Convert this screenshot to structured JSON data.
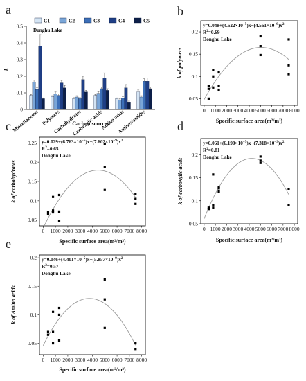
{
  "chart_data": [
    {
      "panel": "a",
      "type": "bar",
      "subtitle": "Donghu Lake",
      "xlabel": "Carbon sources",
      "ylabel": "k",
      "ylim": [
        0,
        0.5
      ],
      "yticks": [
        "0",
        "0.1",
        "0.2",
        "0.3",
        "0.4",
        "0.5"
      ],
      "categories": [
        "Miscellaneous",
        "Polymers",
        "Carbohydrates",
        "Carboxylic acids",
        "Amino acids",
        "Amines/amides"
      ],
      "series": [
        {
          "name": "C1",
          "color": "#d4e4f4",
          "values": [
            0.085,
            0.078,
            0.065,
            0.085,
            0.065,
            0.105
          ],
          "errors": [
            0.005,
            0.005,
            0.006,
            0.006,
            0.005,
            0.012
          ]
        },
        {
          "name": "C2",
          "color": "#7aa6d8",
          "values": [
            0.165,
            0.095,
            0.075,
            0.097,
            0.058,
            0.075
          ],
          "errors": [
            0.012,
            0.01,
            0.008,
            0.01,
            0.006,
            0.008
          ]
        },
        {
          "name": "C3",
          "color": "#3c6fb8",
          "values": [
            0.12,
            0.085,
            0.065,
            0.125,
            0.07,
            0.17
          ],
          "errors": [
            0.01,
            0.008,
            0.006,
            0.01,
            0.008,
            0.015
          ]
        },
        {
          "name": "C4",
          "color": "#1f3f86",
          "values": [
            0.38,
            0.16,
            0.18,
            0.19,
            0.13,
            0.17
          ],
          "errors": [
            0.07,
            0.015,
            0.02,
            0.03,
            0.02,
            0.02
          ]
        },
        {
          "name": "C5",
          "color": "#0d1f48",
          "values": [
            0.065,
            0.13,
            0.105,
            0.115,
            0.045,
            0.125
          ],
          "errors": [
            0.005,
            0.015,
            0.01,
            0.01,
            0.005,
            0.01
          ]
        }
      ]
    },
    {
      "panel": "b",
      "type": "scatter",
      "equation": [
        "y=0.048+(4.622×10",
        "−5",
        ")x−(4.561×10",
        "−9",
        ")x",
        "2"
      ],
      "r2": [
        "R",
        "2",
        "=0.69"
      ],
      "site": "Donghu Lake",
      "xlabel": "Specific surface area(m²/m³)",
      "ylabel": "k of polymers",
      "xlim": [
        -300,
        8300
      ],
      "ylim": [
        0.035,
        0.225
      ],
      "xticks": [
        0,
        1000,
        2000,
        3000,
        4000,
        5000,
        6000,
        7000,
        8000
      ],
      "yticks": [
        0.05,
        0.1,
        0.15,
        0.2
      ],
      "points": [
        [
          400,
          0.05
        ],
        [
          400,
          0.072
        ],
        [
          400,
          0.079
        ],
        [
          800,
          0.075
        ],
        [
          800,
          0.1
        ],
        [
          800,
          0.115
        ],
        [
          1300,
          0.07
        ],
        [
          1300,
          0.078
        ],
        [
          1300,
          0.109
        ],
        [
          5000,
          0.148
        ],
        [
          5000,
          0.168
        ],
        [
          5000,
          0.19
        ],
        [
          7500,
          0.105
        ],
        [
          7500,
          0.125
        ],
        [
          7500,
          0.183
        ]
      ],
      "fit": [
        0.048,
        4.622e-05,
        -4.561e-09
      ]
    },
    {
      "panel": "c",
      "type": "scatter",
      "equation": [
        "y=0.029+(6.763×10",
        "−5",
        ")x−(7.602×10",
        "−9",
        ")x",
        "2"
      ],
      "r2": [
        "R",
        "2",
        "=0.65"
      ],
      "site": "Donghu Lake",
      "xlabel": "Specific surface area(m²/m³)",
      "ylabel": "k of carbohydrates",
      "xlim": [
        -300,
        8300
      ],
      "ylim": [
        0.035,
        0.265
      ],
      "xticks": [
        0,
        1000,
        2000,
        3000,
        4000,
        5000,
        6000,
        7000,
        8000
      ],
      "yticks": [
        0.05,
        0.1,
        0.15,
        0.2,
        0.25
      ],
      "points": [
        [
          400,
          0.065
        ],
        [
          400,
          0.07
        ],
        [
          800,
          0.07
        ],
        [
          800,
          0.075
        ],
        [
          800,
          0.11
        ],
        [
          1300,
          0.048
        ],
        [
          1300,
          0.072
        ],
        [
          1300,
          0.115
        ],
        [
          5000,
          0.128
        ],
        [
          5000,
          0.188
        ],
        [
          5000,
          0.247
        ],
        [
          7500,
          0.092
        ],
        [
          7500,
          0.105
        ],
        [
          7500,
          0.118
        ]
      ],
      "fit": [
        0.029,
        6.763e-05,
        -7.602e-09
      ]
    },
    {
      "panel": "d",
      "type": "scatter",
      "equation": [
        "y=0.061+(6.190×10",
        "−5",
        ")x−(7.318×10",
        "−9",
        ")x",
        "2"
      ],
      "r2": [
        "R",
        "2",
        "=0.81"
      ],
      "site": "Donghu Lake",
      "xlabel": "Specific surface area(m²/m³)",
      "ylabel": "k of carboxylic acids",
      "xlim": [
        -300,
        8300
      ],
      "ylim": [
        0.05,
        0.235
      ],
      "xticks": [
        0,
        1000,
        2000,
        3000,
        4000,
        5000,
        6000,
        7000,
        8000
      ],
      "yticks": [
        0.05,
        0.1,
        0.15,
        0.2
      ],
      "points": [
        [
          400,
          0.082
        ],
        [
          400,
          0.085
        ],
        [
          800,
          0.085
        ],
        [
          800,
          0.09
        ],
        [
          800,
          0.157
        ],
        [
          1300,
          0.12
        ],
        [
          1300,
          0.127
        ],
        [
          1300,
          0.13
        ],
        [
          5000,
          0.182
        ],
        [
          5000,
          0.187
        ],
        [
          5000,
          0.196
        ],
        [
          7500,
          0.09
        ],
        [
          7500,
          0.125
        ]
      ],
      "fit": [
        0.061,
        6.19e-05,
        -7.318e-09
      ]
    },
    {
      "panel": "e",
      "type": "scatter",
      "equation": [
        "y=0.046+(4.401×10",
        "−5",
        ")x−(5.857×10",
        "−9",
        ")x",
        "2"
      ],
      "r2": [
        "R",
        "2",
        "=0.57"
      ],
      "site": "Donghu Lake",
      "xlabel": "Specific surface area(m²/m³)",
      "ylabel": "k of Amino acids",
      "xlim": [
        -300,
        8300
      ],
      "ylim": [
        0.03,
        0.205
      ],
      "xticks": [
        0,
        1000,
        2000,
        3000,
        4000,
        5000,
        6000,
        7000,
        8000
      ],
      "yticks": [
        0.05,
        0.1,
        0.15,
        0.2
      ],
      "points": [
        [
          400,
          0.065
        ],
        [
          400,
          0.07
        ],
        [
          800,
          0.05
        ],
        [
          800,
          0.07
        ],
        [
          800,
          0.105
        ],
        [
          1300,
          0.055
        ],
        [
          1300,
          0.1
        ],
        [
          1300,
          0.112
        ],
        [
          5000,
          0.077
        ],
        [
          5000,
          0.127
        ],
        [
          5000,
          0.162
        ],
        [
          7500,
          0.04
        ],
        [
          7500,
          0.05
        ]
      ],
      "fit": [
        0.046,
        4.401e-05,
        -5.857e-09
      ]
    }
  ]
}
